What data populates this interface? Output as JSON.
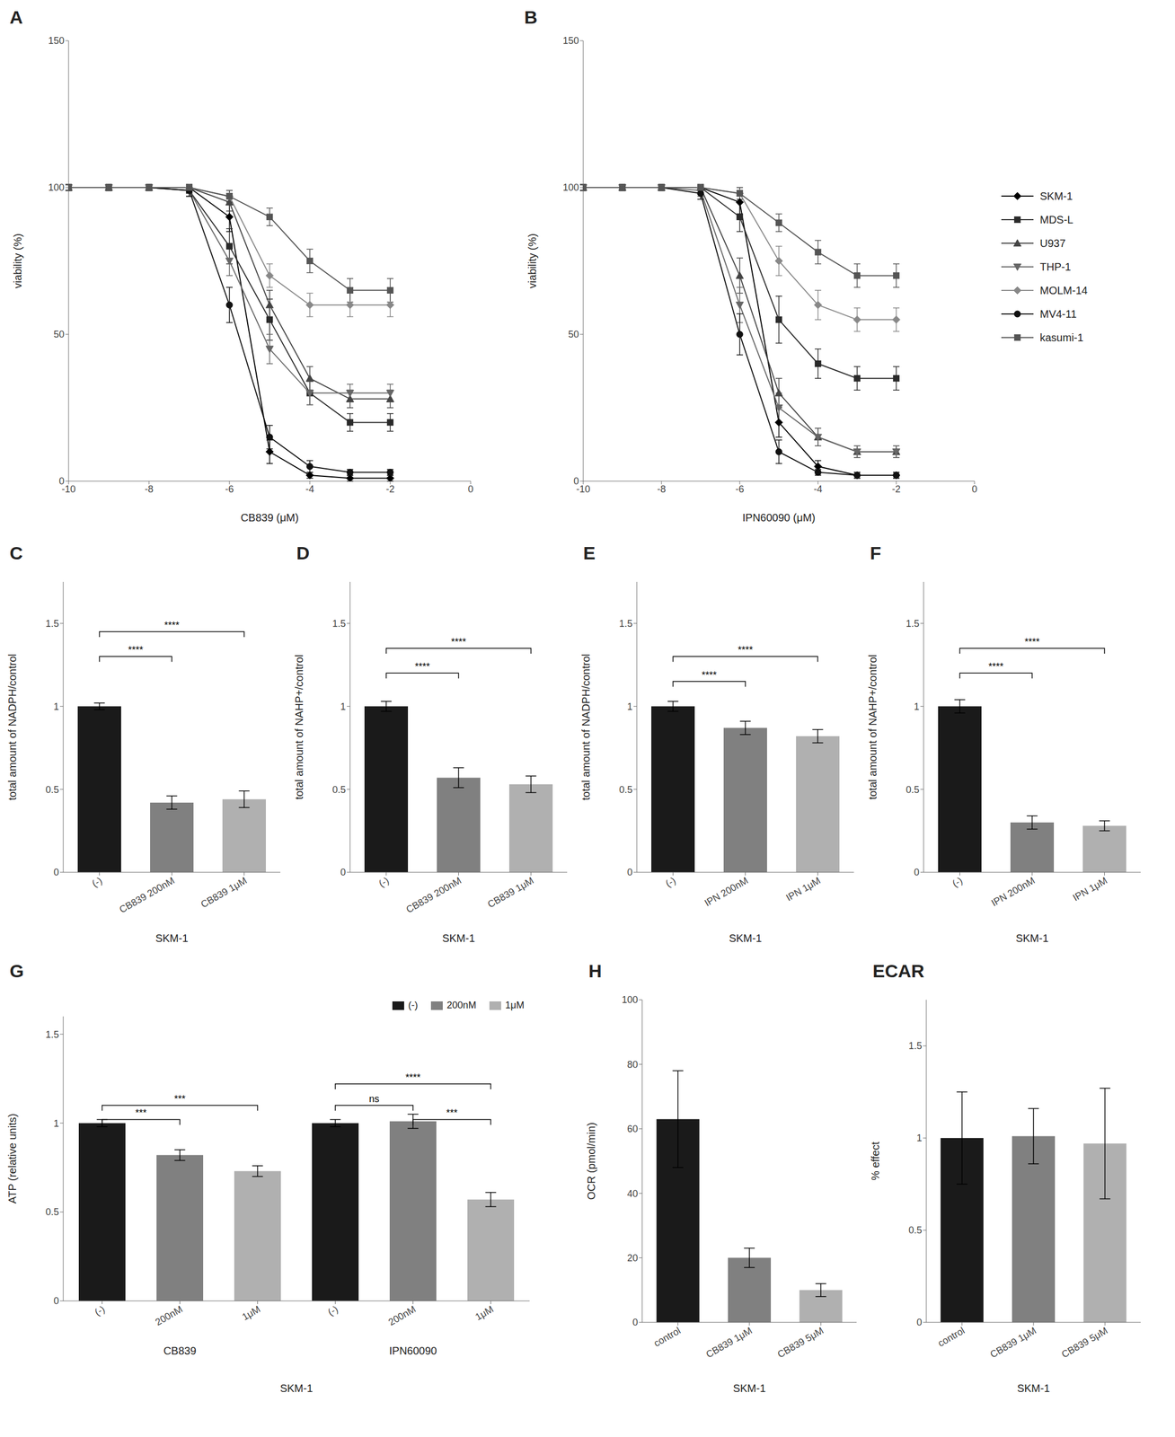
{
  "chart_data": [
    {
      "type": "line",
      "title": "A",
      "x_label": "CB839 (μM)",
      "y_label": "viability (%)",
      "x": [
        -10,
        -9,
        -8,
        -7,
        -6,
        -5,
        -4,
        -3,
        -2
      ],
      "xlim": [
        -10,
        0
      ],
      "xticks": [
        -10,
        -8,
        -6,
        -4,
        -2,
        0
      ],
      "ylim": [
        0,
        150
      ],
      "yticks": [
        0,
        50,
        100,
        150
      ],
      "series": [
        {
          "name": "SKM-1",
          "color": "#000000",
          "marker": "diamond",
          "values": [
            100,
            100,
            100,
            100,
            90,
            10,
            2,
            1,
            1
          ],
          "errors": [
            1,
            1,
            1,
            1,
            5,
            4,
            1,
            1,
            1
          ]
        },
        {
          "name": "MDS-L",
          "color": "#2a2a2a",
          "marker": "square",
          "values": [
            100,
            100,
            100,
            99,
            80,
            55,
            30,
            20,
            20
          ],
          "errors": [
            1,
            1,
            1,
            2,
            6,
            7,
            4,
            3,
            3
          ]
        },
        {
          "name": "U937",
          "color": "#444444",
          "marker": "triangle",
          "values": [
            100,
            100,
            100,
            100,
            95,
            60,
            35,
            28,
            28
          ],
          "errors": [
            1,
            1,
            1,
            1,
            3,
            5,
            4,
            3,
            3
          ]
        },
        {
          "name": "THP-1",
          "color": "#666666",
          "marker": "triangle_down",
          "values": [
            100,
            100,
            100,
            99,
            75,
            45,
            30,
            30,
            30
          ],
          "errors": [
            1,
            1,
            1,
            2,
            5,
            5,
            4,
            3,
            3
          ]
        },
        {
          "name": "MOLM-14",
          "color": "#888888",
          "marker": "diamond",
          "values": [
            100,
            100,
            100,
            100,
            97,
            70,
            60,
            60,
            60
          ],
          "errors": [
            1,
            1,
            1,
            1,
            2,
            4,
            4,
            4,
            4
          ]
        },
        {
          "name": "MV4-11",
          "color": "#111111",
          "marker": "circle",
          "values": [
            100,
            100,
            100,
            99,
            60,
            15,
            5,
            3,
            3
          ],
          "errors": [
            1,
            1,
            1,
            2,
            6,
            4,
            2,
            1,
            1
          ]
        },
        {
          "name": "kasumi-1",
          "color": "#555555",
          "marker": "square",
          "values": [
            100,
            100,
            100,
            100,
            97,
            90,
            75,
            65,
            65
          ],
          "errors": [
            1,
            1,
            1,
            1,
            2,
            3,
            4,
            4,
            4
          ]
        }
      ]
    },
    {
      "type": "line",
      "title": "B",
      "x_label": "IPN60090 (μM)",
      "y_label": "viability (%)",
      "x": [
        -10,
        -9,
        -8,
        -7,
        -6,
        -5,
        -4,
        -3,
        -2
      ],
      "xlim": [
        -10,
        0
      ],
      "xticks": [
        -10,
        -8,
        -6,
        -4,
        -2,
        0
      ],
      "ylim": [
        0,
        150
      ],
      "yticks": [
        0,
        50,
        100,
        150
      ],
      "legend": "right",
      "series": [
        {
          "name": "SKM-1",
          "color": "#000000",
          "marker": "diamond",
          "values": [
            100,
            100,
            100,
            100,
            95,
            20,
            5,
            2,
            2
          ],
          "errors": [
            1,
            1,
            1,
            1,
            4,
            5,
            2,
            1,
            1
          ]
        },
        {
          "name": "MDS-L",
          "color": "#2a2a2a",
          "marker": "square",
          "values": [
            100,
            100,
            100,
            100,
            90,
            55,
            40,
            35,
            35
          ],
          "errors": [
            1,
            1,
            1,
            1,
            5,
            8,
            5,
            4,
            4
          ]
        },
        {
          "name": "U937",
          "color": "#444444",
          "marker": "triangle",
          "values": [
            100,
            100,
            100,
            100,
            70,
            30,
            15,
            10,
            10
          ],
          "errors": [
            1,
            1,
            1,
            1,
            6,
            5,
            3,
            2,
            2
          ]
        },
        {
          "name": "THP-1",
          "color": "#666666",
          "marker": "triangle_down",
          "values": [
            100,
            100,
            100,
            99,
            60,
            25,
            15,
            10,
            10
          ],
          "errors": [
            1,
            1,
            1,
            2,
            6,
            5,
            3,
            2,
            2
          ]
        },
        {
          "name": "MOLM-14",
          "color": "#888888",
          "marker": "diamond",
          "values": [
            100,
            100,
            100,
            100,
            98,
            75,
            60,
            55,
            55
          ],
          "errors": [
            1,
            1,
            1,
            1,
            2,
            5,
            5,
            4,
            4
          ]
        },
        {
          "name": "MV4-11",
          "color": "#111111",
          "marker": "circle",
          "values": [
            100,
            100,
            100,
            98,
            50,
            10,
            3,
            2,
            2
          ],
          "errors": [
            1,
            1,
            1,
            2,
            7,
            4,
            1,
            1,
            1
          ]
        },
        {
          "name": "kasumi-1",
          "color": "#555555",
          "marker": "square",
          "values": [
            100,
            100,
            100,
            100,
            98,
            88,
            78,
            70,
            70
          ],
          "errors": [
            1,
            1,
            1,
            1,
            2,
            3,
            4,
            4,
            4
          ]
        }
      ]
    },
    {
      "type": "bar",
      "title": "C",
      "x_label": "SKM-1",
      "y_label": "total amount of NADPH/control",
      "categories": [
        "(-)",
        "CB839 200nM",
        "CB839 1μM"
      ],
      "values": [
        1.0,
        0.42,
        0.44
      ],
      "errors": [
        0.02,
        0.04,
        0.05
      ],
      "colors": [
        "#1a1a1a",
        "#808080",
        "#b0b0b0"
      ],
      "ylim": [
        0,
        1.75
      ],
      "yticks": [
        0,
        0.5,
        1,
        1.5
      ],
      "annotations": [
        {
          "text": "****",
          "x1": 0,
          "x2": 1,
          "y": 1.3
        },
        {
          "text": "****",
          "x1": 0,
          "x2": 2,
          "y": 1.45
        }
      ]
    },
    {
      "type": "bar",
      "title": "D",
      "x_label": "SKM-1",
      "y_label": "total amount of NAHP+/control",
      "categories": [
        "(-)",
        "CB839 200nM",
        "CB839 1μM"
      ],
      "values": [
        1.0,
        0.57,
        0.53
      ],
      "errors": [
        0.03,
        0.06,
        0.05
      ],
      "colors": [
        "#1a1a1a",
        "#808080",
        "#b0b0b0"
      ],
      "ylim": [
        0,
        1.75
      ],
      "yticks": [
        0,
        0.5,
        1,
        1.5
      ],
      "annotations": [
        {
          "text": "****",
          "x1": 0,
          "x2": 1,
          "y": 1.2
        },
        {
          "text": "****",
          "x1": 0,
          "x2": 2,
          "y": 1.35
        }
      ]
    },
    {
      "type": "bar",
      "title": "E",
      "x_label": "SKM-1",
      "y_label": "total amount of NADPH/control",
      "categories": [
        "(-)",
        "IPN 200nM",
        "IPN 1μM"
      ],
      "values": [
        1.0,
        0.87,
        0.82
      ],
      "errors": [
        0.03,
        0.04,
        0.04
      ],
      "colors": [
        "#1a1a1a",
        "#808080",
        "#b0b0b0"
      ],
      "ylim": [
        0,
        1.75
      ],
      "yticks": [
        0,
        0.5,
        1,
        1.5
      ],
      "annotations": [
        {
          "text": "****",
          "x1": 0,
          "x2": 1,
          "y": 1.15
        },
        {
          "text": "****",
          "x1": 0,
          "x2": 2,
          "y": 1.3
        }
      ]
    },
    {
      "type": "bar",
      "title": "F",
      "x_label": "SKM-1",
      "y_label": "total amount of NAHP+/control",
      "categories": [
        "(-)",
        "IPN 200nM",
        "IPN 1μM"
      ],
      "values": [
        1.0,
        0.3,
        0.28
      ],
      "errors": [
        0.04,
        0.04,
        0.03
      ],
      "colors": [
        "#1a1a1a",
        "#808080",
        "#b0b0b0"
      ],
      "ylim": [
        0,
        1.75
      ],
      "yticks": [
        0,
        0.5,
        1,
        1.5
      ],
      "annotations": [
        {
          "text": "****",
          "x1": 0,
          "x2": 1,
          "y": 1.2
        },
        {
          "text": "****",
          "x1": 0,
          "x2": 2,
          "y": 1.35
        }
      ]
    },
    {
      "type": "bar",
      "title": "G",
      "x_label": "SKM-1",
      "y_label": "ATP (relative units)",
      "categories": [
        "(-)",
        "200nM",
        "1μM",
        "(-)",
        "200nM",
        "1μM"
      ],
      "values": [
        1.0,
        0.82,
        0.73,
        1.0,
        1.01,
        0.57
      ],
      "errors": [
        0.02,
        0.03,
        0.03,
        0.02,
        0.04,
        0.04
      ],
      "colors": [
        "#1a1a1a",
        "#808080",
        "#b0b0b0",
        "#1a1a1a",
        "#808080",
        "#b0b0b0"
      ],
      "ylim": [
        0,
        1.6
      ],
      "yticks": [
        0,
        0.5,
        1,
        1.5
      ],
      "legend": "upper right",
      "legend_items": [
        {
          "name": "(-)",
          "color": "#1a1a1a"
        },
        {
          "name": "200nM",
          "color": "#808080"
        },
        {
          "name": "1μM",
          "color": "#b0b0b0"
        }
      ],
      "groups": [
        {
          "text": "CB839",
          "x1": 0,
          "x2": 2
        },
        {
          "text": "IPN60090",
          "x1": 3,
          "x2": 5
        }
      ],
      "annotations": [
        {
          "text": "***",
          "x1": 0,
          "x2": 1,
          "y": 1.02
        },
        {
          "text": "***",
          "x1": 0,
          "x2": 2,
          "y": 1.1
        },
        {
          "text": "ns",
          "x1": 3,
          "x2": 4,
          "y": 1.1
        },
        {
          "text": "***",
          "x1": 4,
          "x2": 5,
          "y": 1.02
        },
        {
          "text": "****",
          "x1": 3,
          "x2": 5,
          "y": 1.22
        }
      ]
    },
    {
      "type": "bar",
      "title": "H",
      "x_label": "SKM-1",
      "y_label": "OCR (pmol/min)",
      "categories": [
        "control",
        "CB839 1μM",
        "CB839 5μM"
      ],
      "values": [
        63,
        20,
        10
      ],
      "errors": [
        15,
        3,
        2
      ],
      "colors": [
        "#1a1a1a",
        "#808080",
        "#b0b0b0"
      ],
      "ylim": [
        0,
        100
      ],
      "yticks": [
        0,
        20,
        40,
        60,
        80,
        100
      ]
    },
    {
      "type": "bar",
      "title": "ECAR",
      "x_label": "SKM-1",
      "y_label": "% effect",
      "categories": [
        "control",
        "CB839 1μM",
        "CB839 5μM"
      ],
      "values": [
        1.0,
        1.01,
        0.97
      ],
      "errors": [
        0.25,
        0.15,
        0.3
      ],
      "colors": [
        "#1a1a1a",
        "#808080",
        "#b0b0b0"
      ],
      "ylim": [
        0,
        1.75
      ],
      "yticks": [
        0,
        0.5,
        1,
        1.5
      ]
    }
  ]
}
